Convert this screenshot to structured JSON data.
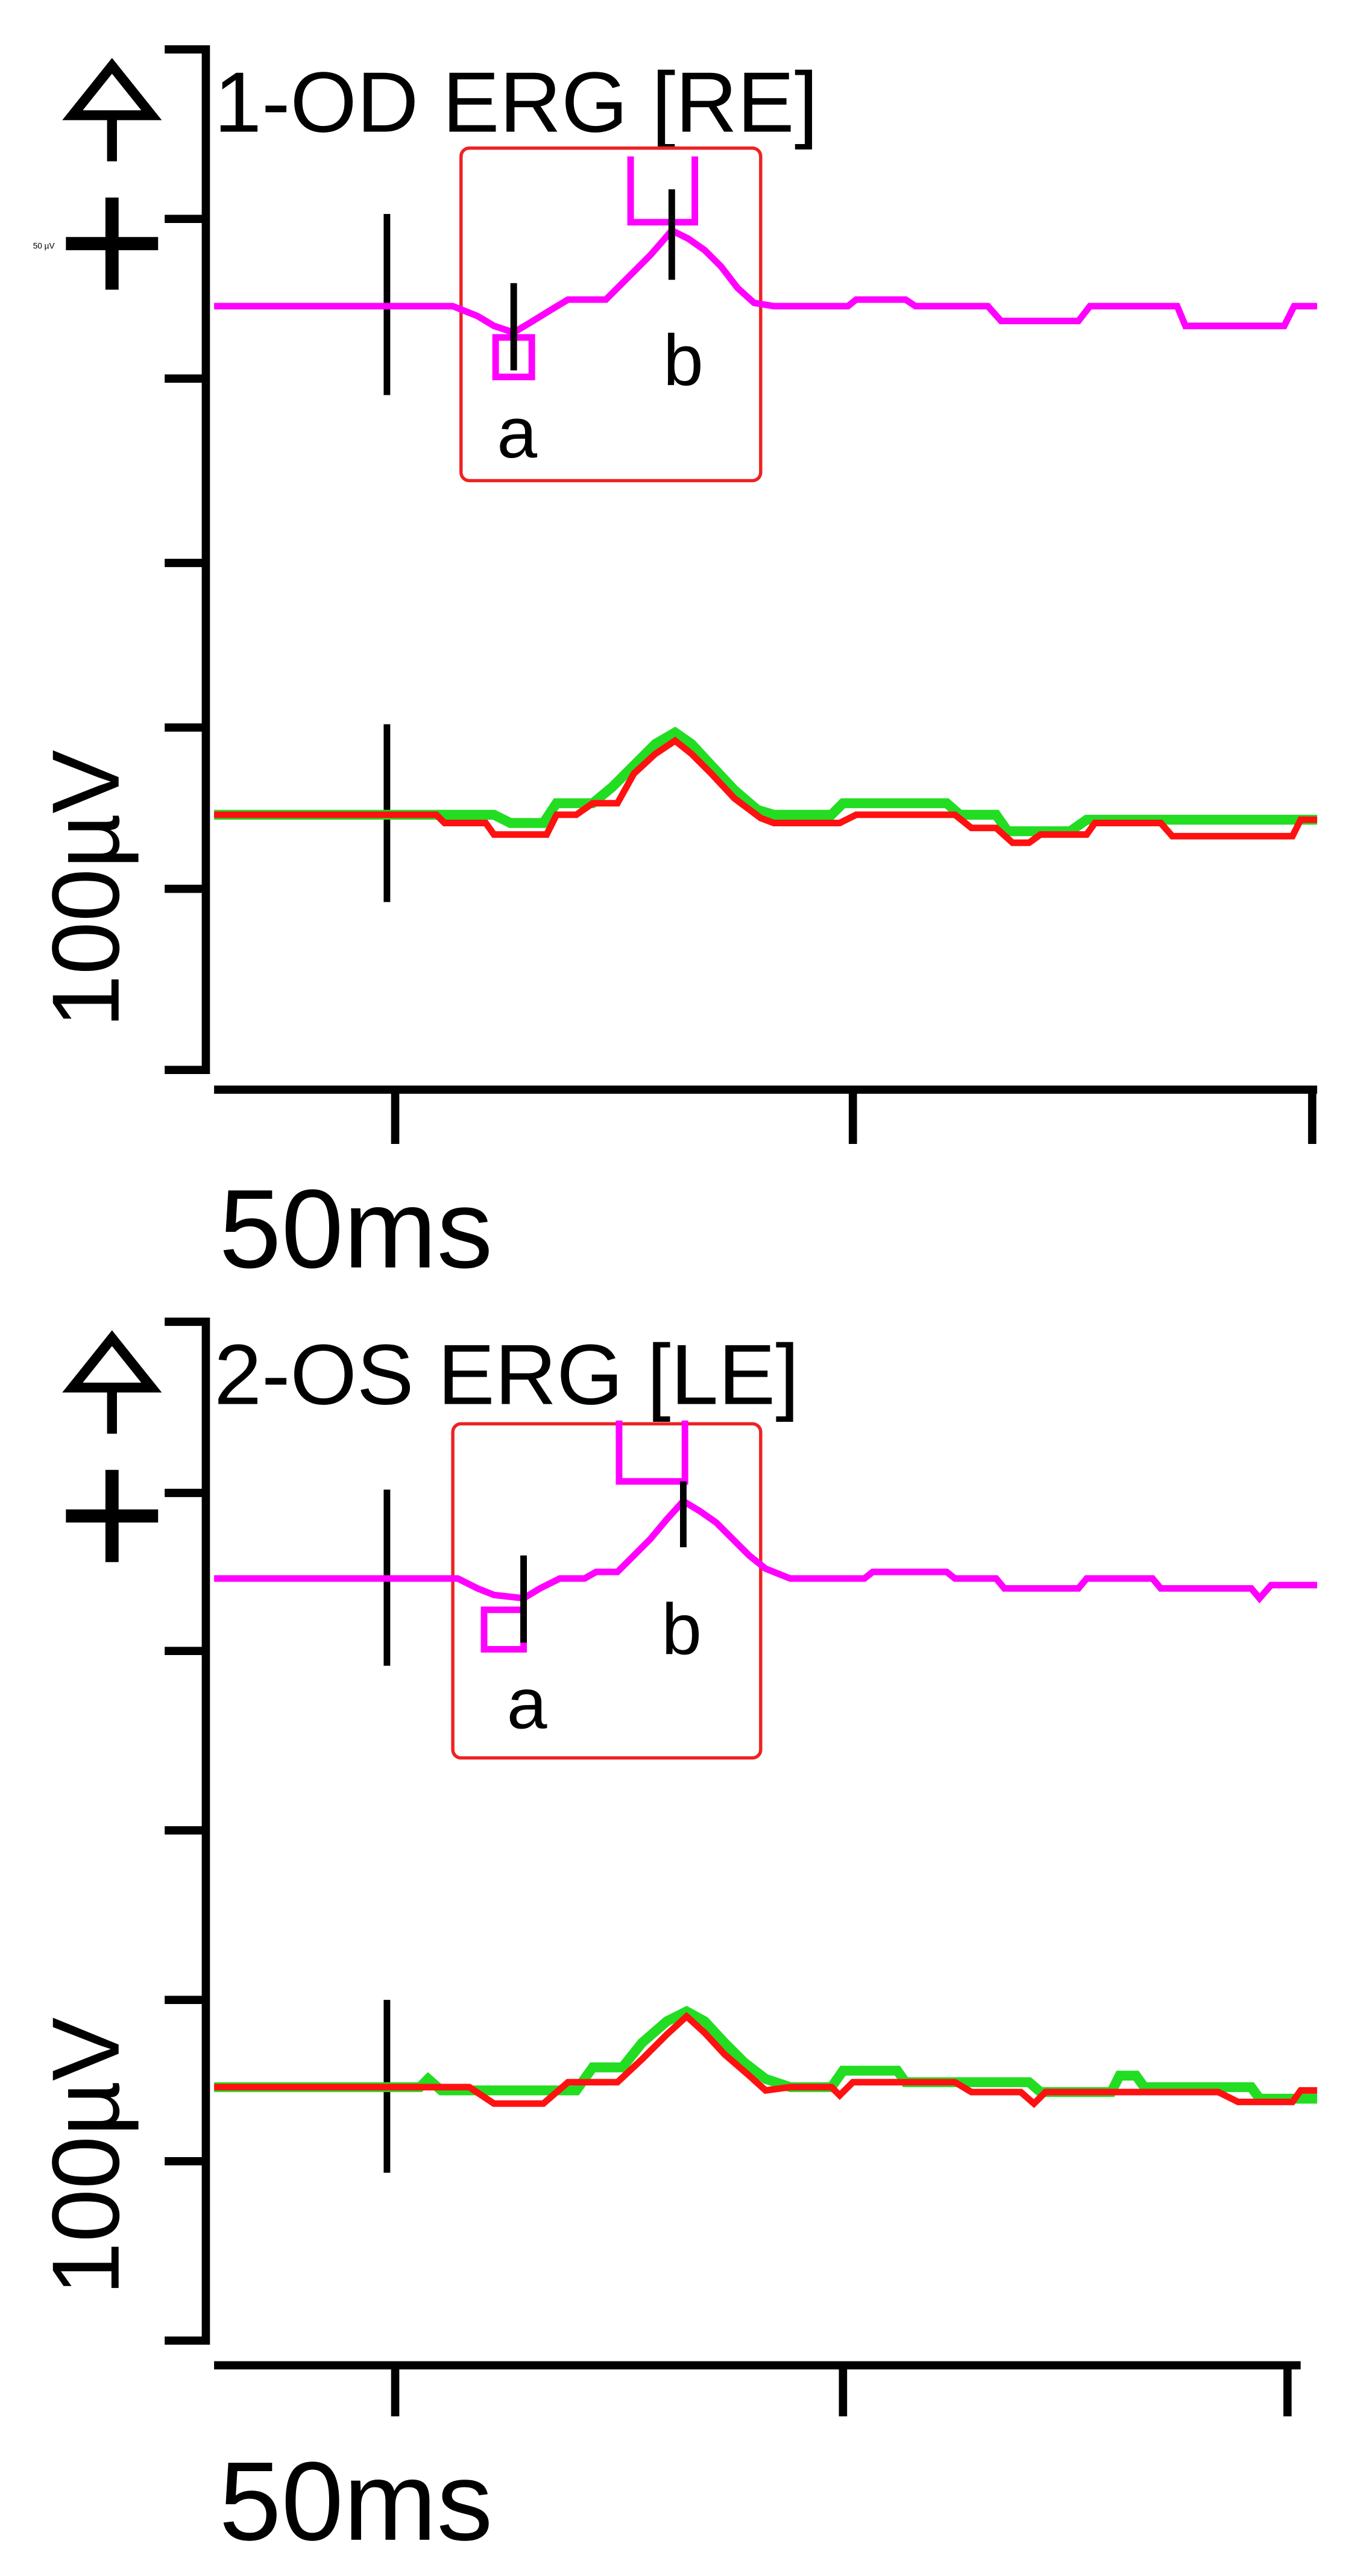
{
  "panels": [
    {
      "title": "1-OD ERG [RE]",
      "scale_note": "50 µV",
      "marker_a": "a",
      "marker_b": "b",
      "y_scale": "100µV",
      "x_scale": "50ms"
    },
    {
      "title": "2-OS ERG [LE]",
      "marker_a": "a",
      "marker_b": "b",
      "y_scale": "100µV",
      "x_scale": "50ms"
    }
  ]
}
